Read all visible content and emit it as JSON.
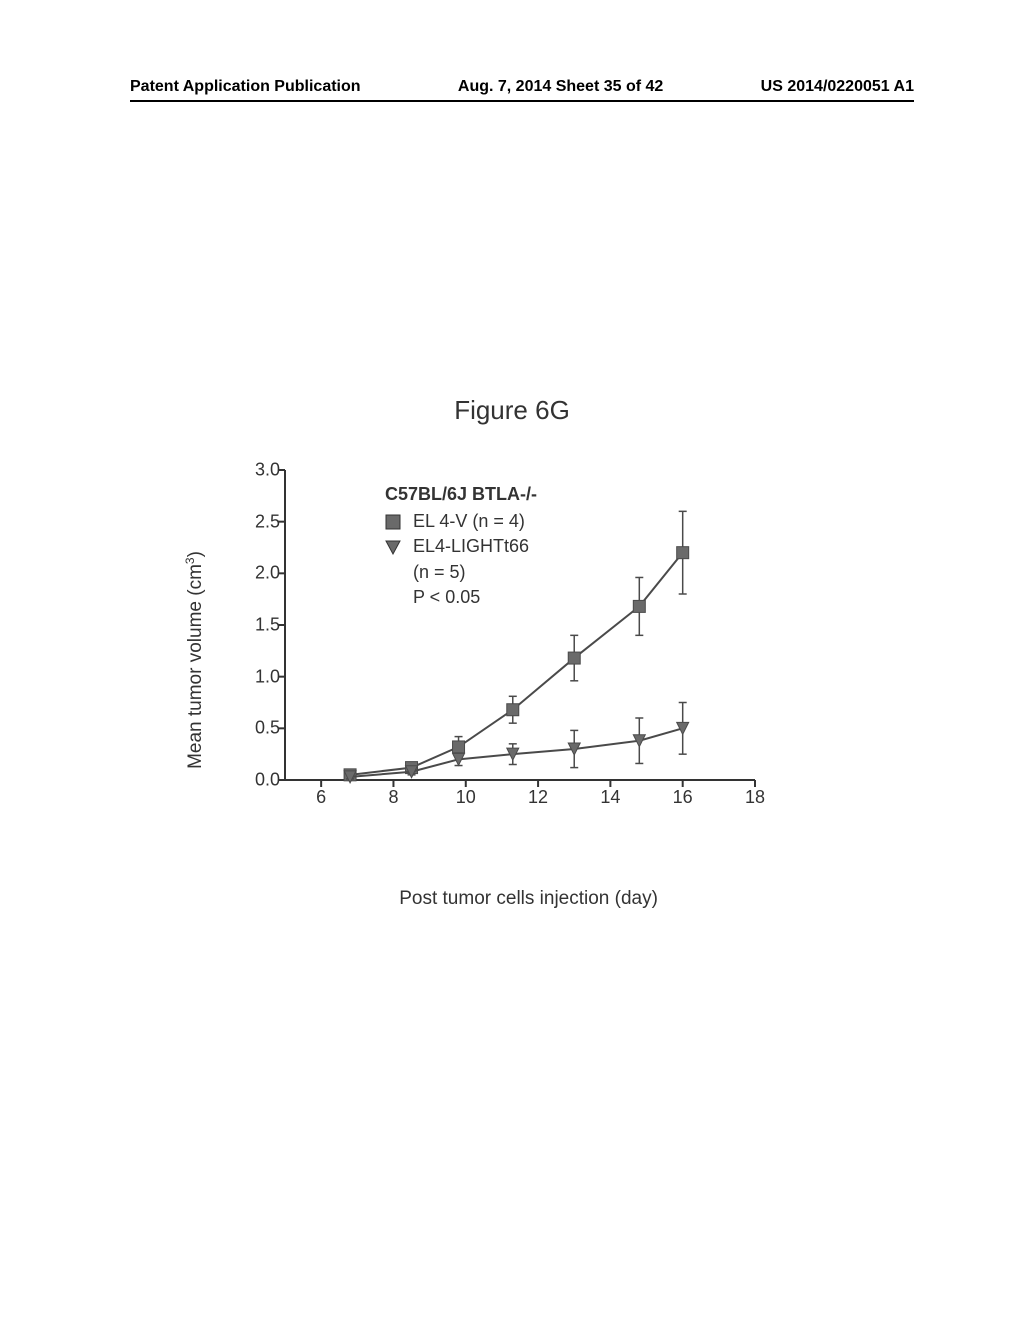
{
  "header": {
    "left": "Patent Application Publication",
    "center": "Aug. 7, 2014  Sheet 35 of 42",
    "right": "US 2014/0220051 A1"
  },
  "figure": {
    "title": "Figure 6G",
    "type": "line-scatter",
    "ylabel_prefix": "Mean tumor volume (cm",
    "ylabel_sup": "3",
    "ylabel_suffix": ")",
    "xlabel": "Post tumor cells injection (day)",
    "xlim": [
      5,
      18
    ],
    "ylim": [
      0,
      3.0
    ],
    "xticks": [
      6,
      8,
      10,
      12,
      14,
      16,
      18
    ],
    "yticks": [
      0.0,
      0.5,
      1.0,
      1.5,
      2.0,
      2.5,
      3.0
    ],
    "ytick_labels": [
      "0.0",
      "0.5",
      "1.0",
      "1.5",
      "2.0",
      "2.5",
      "3.0"
    ],
    "legend": {
      "title": "C57BL/6J BTLA-/-",
      "items": [
        {
          "marker": "square",
          "label": "EL 4-V (n = 4)"
        },
        {
          "marker": "triangle-down",
          "label": "EL4-LIGHTt66"
        }
      ],
      "sub_lines": [
        "(n = 5)",
        "P < 0.05"
      ]
    },
    "series": [
      {
        "name": "EL4-V",
        "marker": "square",
        "color": "#4a4a4a",
        "x": [
          6.8,
          8.5,
          9.8,
          11.3,
          13.0,
          14.8,
          16.0
        ],
        "y": [
          0.05,
          0.12,
          0.32,
          0.68,
          1.18,
          1.68,
          2.2
        ],
        "err": [
          0.02,
          0.04,
          0.1,
          0.13,
          0.22,
          0.28,
          0.4
        ]
      },
      {
        "name": "EL4-LIGHTt66",
        "marker": "triangle-down",
        "color": "#4a4a4a",
        "x": [
          6.8,
          8.5,
          9.8,
          11.3,
          13.0,
          14.8,
          16.0
        ],
        "y": [
          0.03,
          0.08,
          0.2,
          0.25,
          0.3,
          0.38,
          0.5
        ],
        "err": [
          0.02,
          0.03,
          0.06,
          0.1,
          0.18,
          0.22,
          0.25
        ]
      }
    ],
    "axis_color": "#333333",
    "marker_fill": "#6a6a6a",
    "line_width": 2,
    "marker_size": 12,
    "errorbar_width": 1.5,
    "cap_width": 8
  }
}
